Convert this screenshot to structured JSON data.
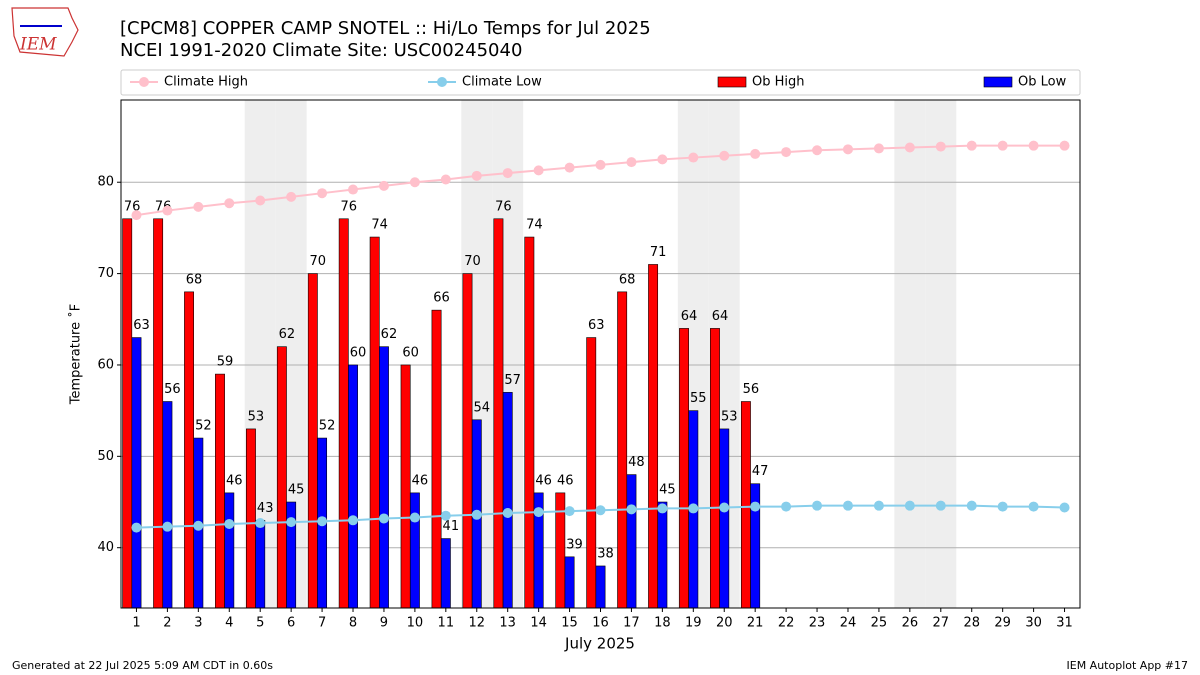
{
  "logo": "IEM",
  "chart_data": {
    "type": "bar_line",
    "title": "[CPCM8] COPPER CAMP SNOTEL :: Hi/Lo Temps for Jul 2025",
    "subtitle": "NCEI 1991-2020 Climate Site: USC00245040",
    "ylabel": "Temperature ˚F",
    "xlabel": "July 2025",
    "footer_left": "Generated at 22 Jul 2025 5:09 AM CDT in 0.60s",
    "footer_right": "IEM Autoplot App #17",
    "x": [
      1,
      2,
      3,
      4,
      5,
      6,
      7,
      8,
      9,
      10,
      11,
      12,
      13,
      14,
      15,
      16,
      17,
      18,
      19,
      20,
      21,
      22,
      23,
      24,
      25,
      26,
      27,
      28,
      29,
      30,
      31
    ],
    "xlim": [
      0.5,
      31.5
    ],
    "xticks": [
      1,
      2,
      3,
      4,
      5,
      6,
      7,
      8,
      9,
      10,
      11,
      12,
      13,
      14,
      15,
      16,
      17,
      18,
      19,
      20,
      21,
      22,
      23,
      24,
      25,
      26,
      27,
      28,
      29,
      30,
      31
    ],
    "ylim": [
      33.4,
      89.0
    ],
    "yticks": [
      40,
      50,
      60,
      70,
      80
    ],
    "grid": true,
    "shaded_days": [
      5,
      6,
      12,
      13,
      19,
      20,
      26,
      27
    ],
    "series": [
      {
        "name": "Climate High",
        "kind": "line",
        "color": "#ffc0cb",
        "values": [
          76.4,
          76.9,
          77.3,
          77.7,
          78.0,
          78.4,
          78.8,
          79.2,
          79.6,
          80.0,
          80.3,
          80.7,
          81.0,
          81.3,
          81.6,
          81.9,
          82.2,
          82.5,
          82.7,
          82.9,
          83.1,
          83.3,
          83.5,
          83.6,
          83.7,
          83.8,
          83.9,
          84.0,
          84.0,
          84.0,
          84.0
        ]
      },
      {
        "name": "Climate Low",
        "kind": "line",
        "color": "#87ceeb",
        "values": [
          42.2,
          42.3,
          42.4,
          42.6,
          42.7,
          42.8,
          42.9,
          43.0,
          43.2,
          43.3,
          43.5,
          43.6,
          43.8,
          43.9,
          44.0,
          44.1,
          44.2,
          44.3,
          44.3,
          44.4,
          44.5,
          44.5,
          44.6,
          44.6,
          44.6,
          44.6,
          44.6,
          44.6,
          44.5,
          44.5,
          44.4
        ]
      },
      {
        "name": "Ob High",
        "kind": "bar",
        "color": "#ff0000",
        "values": [
          76,
          76,
          68,
          59,
          53,
          62,
          70,
          76,
          74,
          60,
          66,
          70,
          76,
          74,
          46,
          63,
          68,
          71,
          64,
          64,
          56,
          null,
          null,
          null,
          null,
          null,
          null,
          null,
          null,
          null,
          null
        ]
      },
      {
        "name": "Ob Low",
        "kind": "bar",
        "color": "#0000ff",
        "values": [
          63,
          56,
          52,
          46,
          43,
          45,
          52,
          60,
          62,
          46,
          41,
          54,
          57,
          46,
          39,
          38,
          48,
          45,
          55,
          53,
          47,
          null,
          null,
          null,
          null,
          null,
          null,
          null,
          null,
          null,
          null
        ]
      }
    ]
  }
}
